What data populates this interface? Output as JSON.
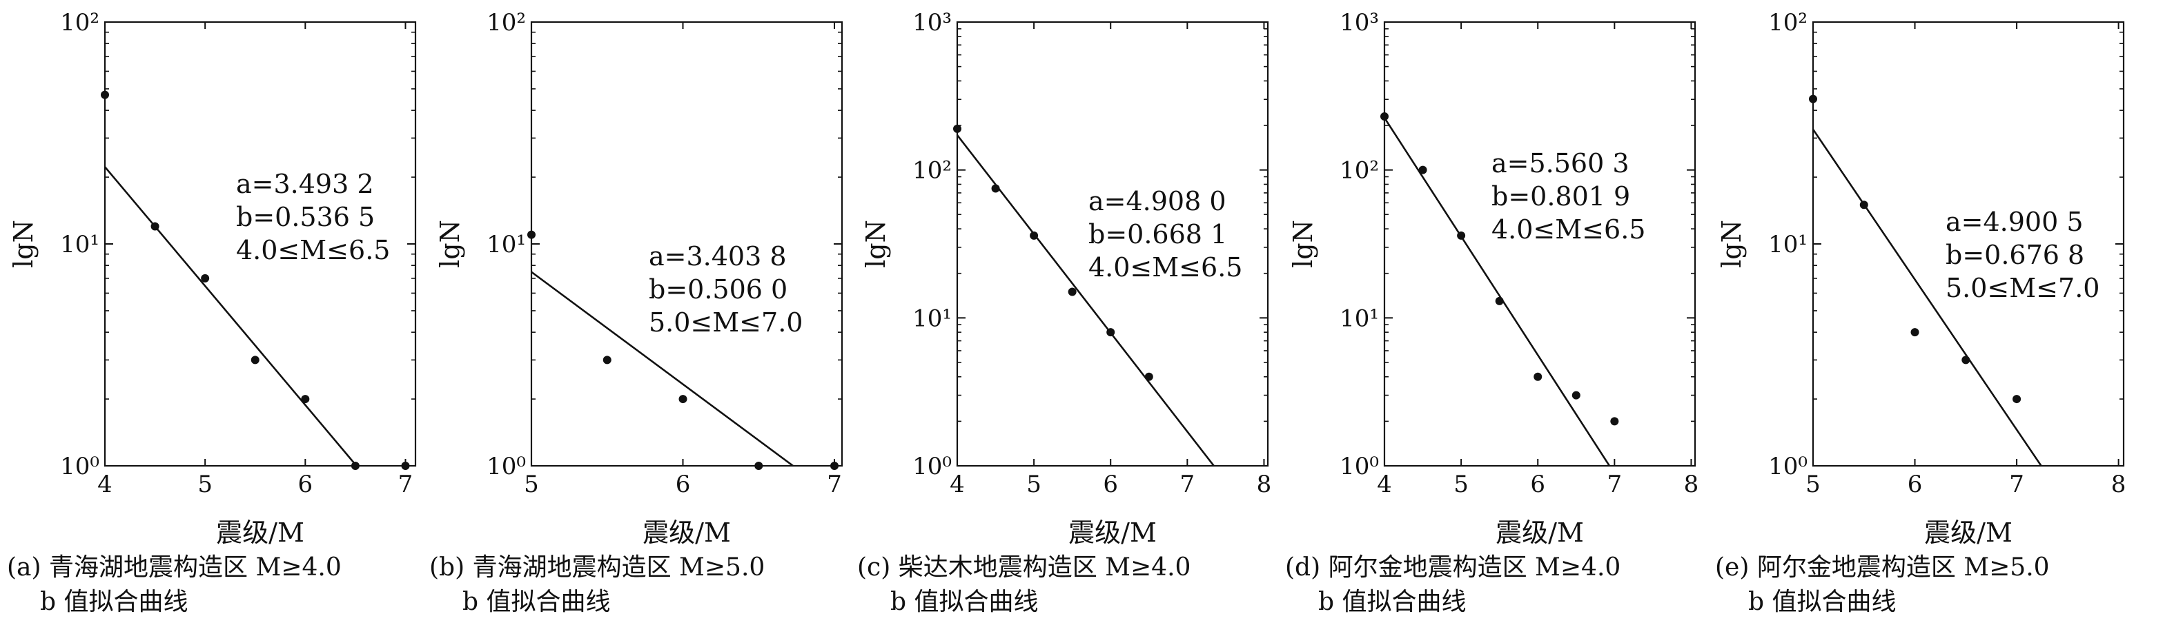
{
  "figure": {
    "xlabel": "震级/M",
    "ylabel": "lgN"
  },
  "chart_data": [
    {
      "type": "scatter",
      "caption": [
        "(a) 青海湖地震构造区 M≥4.0",
        "b 值拟合曲线"
      ],
      "xlabel": "震级/M",
      "ylabel": "lgN",
      "xlim": [
        4,
        7.1
      ],
      "ylim": [
        1,
        100
      ],
      "yscale": "log",
      "xticks": [
        4,
        5,
        6,
        7
      ],
      "yticks": [
        {
          "value": 1,
          "label": "10⁰"
        },
        {
          "value": 10,
          "label": "10¹"
        },
        {
          "value": 100,
          "label": "10²"
        }
      ],
      "points": [
        [
          4.0,
          47
        ],
        [
          4.5,
          12
        ],
        [
          5.0,
          7
        ],
        [
          5.5,
          3
        ],
        [
          6.0,
          2
        ],
        [
          6.5,
          1
        ],
        [
          7.0,
          1
        ]
      ],
      "fit": {
        "a": 3.4932,
        "b": 0.5365,
        "x_range": [
          4.0,
          6.55
        ]
      },
      "annotation": [
        "a=3.493 2",
        "b=0.536 5",
        "4.0≤M≤6.5"
      ]
    },
    {
      "type": "scatter",
      "caption": [
        "(b) 青海湖地震构造区 M≥5.0",
        "b 值拟合曲线"
      ],
      "xlabel": "震级/M",
      "ylabel": "lgN",
      "xlim": [
        5,
        7.05
      ],
      "ylim": [
        1,
        100
      ],
      "yscale": "log",
      "xticks": [
        5,
        6,
        7
      ],
      "yticks": [
        {
          "value": 1,
          "label": "10⁰"
        },
        {
          "value": 10,
          "label": "10¹"
        },
        {
          "value": 100,
          "label": "10²"
        }
      ],
      "points": [
        [
          5.0,
          11
        ],
        [
          5.5,
          3
        ],
        [
          6.0,
          2
        ],
        [
          6.5,
          1
        ],
        [
          7.0,
          1
        ]
      ],
      "fit": {
        "a": 3.4038,
        "b": 0.506,
        "x_range": [
          5.0,
          6.75
        ]
      },
      "annotation": [
        "a=3.403 8",
        "b=0.506 0",
        "5.0≤M≤7.0"
      ]
    },
    {
      "type": "scatter",
      "caption": [
        "(c) 柴达木地震构造区 M≥4.0",
        "b 值拟合曲线"
      ],
      "xlabel": "震级/M",
      "ylabel": "lgN",
      "xlim": [
        4,
        8.05
      ],
      "ylim": [
        1,
        1000
      ],
      "yscale": "log",
      "xticks": [
        4,
        5,
        6,
        7,
        8
      ],
      "yticks": [
        {
          "value": 1,
          "label": "10⁰"
        },
        {
          "value": 10,
          "label": "10¹"
        },
        {
          "value": 100,
          "label": "10²"
        },
        {
          "value": 1000,
          "label": "10³"
        }
      ],
      "points": [
        [
          4.0,
          190
        ],
        [
          4.5,
          75
        ],
        [
          5.0,
          36
        ],
        [
          5.5,
          15
        ],
        [
          6.0,
          8
        ],
        [
          6.5,
          4
        ]
      ],
      "fit": {
        "a": 4.908,
        "b": 0.6681,
        "x_range": [
          4.0,
          7.35
        ]
      },
      "annotation": [
        "a=4.908 0",
        "b=0.668 1",
        "4.0≤M≤6.5"
      ]
    },
    {
      "type": "scatter",
      "caption": [
        "(d) 阿尔金地震构造区 M≥4.0",
        "b 值拟合曲线"
      ],
      "xlabel": "震级/M",
      "ylabel": "lgN",
      "xlim": [
        4,
        8.05
      ],
      "ylim": [
        1,
        1000
      ],
      "yscale": "log",
      "xticks": [
        4,
        5,
        6,
        7,
        8
      ],
      "yticks": [
        {
          "value": 1,
          "label": "10⁰"
        },
        {
          "value": 10,
          "label": "10¹"
        },
        {
          "value": 100,
          "label": "10²"
        },
        {
          "value": 1000,
          "label": "10³"
        }
      ],
      "points": [
        [
          4.0,
          230
        ],
        [
          4.5,
          100
        ],
        [
          5.0,
          36
        ],
        [
          5.5,
          13
        ],
        [
          6.0,
          4
        ],
        [
          6.5,
          3
        ],
        [
          7.0,
          2
        ]
      ],
      "fit": {
        "a": 5.5603,
        "b": 0.8019,
        "x_range": [
          4.0,
          6.95
        ]
      },
      "annotation": [
        "a=5.560 3",
        "b=0.801 9",
        "4.0≤M≤6.5"
      ]
    },
    {
      "type": "scatter",
      "caption": [
        "(e) 阿尔金地震构造区 M≥5.0",
        "b 值拟合曲线"
      ],
      "xlabel": "震级/M",
      "ylabel": "lgN",
      "xlim": [
        5,
        8.05
      ],
      "ylim": [
        1,
        100
      ],
      "yscale": "log",
      "xticks": [
        5,
        6,
        7,
        8
      ],
      "yticks": [
        {
          "value": 1,
          "label": "10⁰"
        },
        {
          "value": 10,
          "label": "10¹"
        },
        {
          "value": 100,
          "label": "10²"
        }
      ],
      "points": [
        [
          5.0,
          45
        ],
        [
          5.5,
          15
        ],
        [
          6.0,
          4
        ],
        [
          6.5,
          3
        ],
        [
          7.0,
          2
        ]
      ],
      "fit": {
        "a": 4.9005,
        "b": 0.6768,
        "x_range": [
          5.0,
          7.25
        ]
      },
      "annotation": [
        "a=4.900 5",
        "b=0.676 8",
        "5.0≤M≤7.0"
      ]
    }
  ]
}
